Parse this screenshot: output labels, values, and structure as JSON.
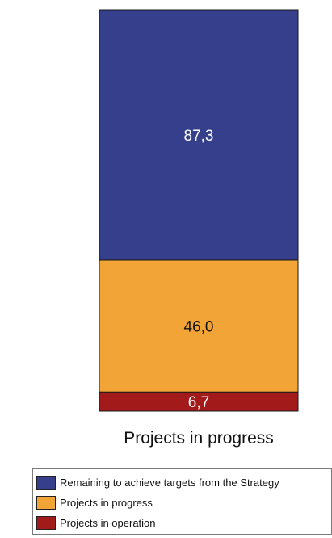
{
  "chart_data": {
    "type": "bar",
    "stacked": true,
    "categories": [
      "Projects in progress"
    ],
    "series": [
      {
        "name": "Projects in operation",
        "values": [
          6.7
        ],
        "label": "6,7",
        "color": "#a31a1a",
        "label_color": "#ffffff"
      },
      {
        "name": "Projects in progress",
        "values": [
          46.0
        ],
        "label": "46,0",
        "color": "#f2a536",
        "label_color": "#111111"
      },
      {
        "name": "Remaining to achieve targets from the Strategy",
        "values": [
          87.3
        ],
        "label": "87,3",
        "color": "#363f8c",
        "label_color": "#ffffff"
      }
    ],
    "legend": [
      {
        "label": "Remaining to achieve targets from the Strategy",
        "color": "#363f8c"
      },
      {
        "label": "Projects in progress",
        "color": "#f2a536"
      },
      {
        "label": "Projects in operation",
        "color": "#a31a1a"
      }
    ],
    "legend_position": "bottom",
    "grid": false,
    "axes_visible": false,
    "title": "",
    "xlabel": "",
    "ylabel": ""
  }
}
